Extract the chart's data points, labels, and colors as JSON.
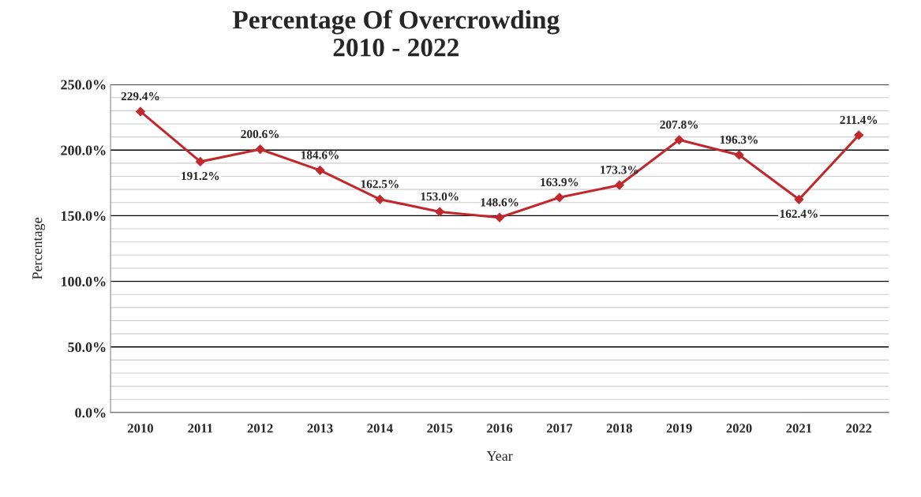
{
  "chart_data": {
    "type": "line",
    "title": "Percentage Of Overcrowding\n2010 - 2022",
    "xlabel": "Year",
    "ylabel": "Percentage",
    "categories": [
      "2010",
      "2011",
      "2012",
      "2013",
      "2014",
      "2015",
      "2016",
      "2017",
      "2018",
      "2019",
      "2020",
      "2021",
      "2022"
    ],
    "series": [
      {
        "color": "#c0282d",
        "values": [
          229.4,
          191.2,
          200.6,
          184.6,
          162.5,
          153.0,
          148.6,
          163.9,
          173.3,
          207.8,
          196.3,
          162.4,
          211.4
        ],
        "value_labels": [
          "229.4%",
          "191.2%",
          "200.6%",
          "184.6%",
          "162.5%",
          "153.0%",
          "148.6%",
          "163.9%",
          "173.3%",
          "207.8%",
          "196.3%",
          "162.4%",
          "211.4%"
        ]
      }
    ],
    "ylim": [
      0,
      250
    ],
    "yticks": [
      {
        "value": 0,
        "label": "0.0%"
      },
      {
        "value": 10,
        "label": null
      },
      {
        "value": 20,
        "label": null
      },
      {
        "value": 30,
        "label": null
      },
      {
        "value": 40,
        "label": null
      },
      {
        "value": 50,
        "label": "50.0%"
      },
      {
        "value": 60,
        "label": null
      },
      {
        "value": 70,
        "label": null
      },
      {
        "value": 80,
        "label": null
      },
      {
        "value": 90,
        "label": null
      },
      {
        "value": 100,
        "label": "100.0%"
      },
      {
        "value": 110,
        "label": null
      },
      {
        "value": 120,
        "label": null
      },
      {
        "value": 130,
        "label": null
      },
      {
        "value": 140,
        "label": null
      },
      {
        "value": 150,
        "label": "150.0%"
      },
      {
        "value": 160,
        "label": null
      },
      {
        "value": 170,
        "label": null
      },
      {
        "value": 180,
        "label": null
      },
      {
        "value": 190,
        "label": null
      },
      {
        "value": 200,
        "label": "200.0%"
      },
      {
        "value": 210,
        "label": null
      },
      {
        "value": 220,
        "label": null
      },
      {
        "value": 230,
        "label": null
      },
      {
        "value": 240,
        "label": null
      },
      {
        "value": 250,
        "label": "250.0%"
      }
    ],
    "grid": "y",
    "marker": "diamond",
    "line_style": "solid",
    "legend": false
  }
}
